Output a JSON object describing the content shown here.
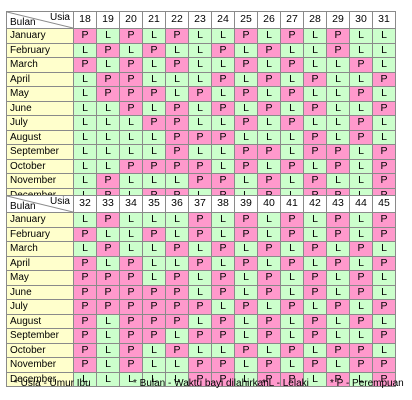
{
  "corner": {
    "age_label": "Usia",
    "month_label": "Bulan"
  },
  "months": [
    "January",
    "February",
    "March",
    "April",
    "May",
    "June",
    "July",
    "August",
    "September",
    "October",
    "November",
    "December"
  ],
  "chart_data": [
    {
      "type": "table",
      "ages": [
        18,
        19,
        20,
        21,
        22,
        23,
        24,
        25,
        26,
        27,
        28,
        29,
        30,
        31
      ],
      "rows": [
        [
          "P",
          "L",
          "P",
          "L",
          "P",
          "L",
          "L",
          "P",
          "L",
          "P",
          "L",
          "P",
          "L",
          "L"
        ],
        [
          "L",
          "P",
          "L",
          "P",
          "L",
          "L",
          "P",
          "L",
          "P",
          "L",
          "L",
          "P",
          "L",
          "L"
        ],
        [
          "P",
          "L",
          "P",
          "L",
          "P",
          "L",
          "L",
          "P",
          "L",
          "P",
          "L",
          "L",
          "P",
          "L"
        ],
        [
          "L",
          "P",
          "P",
          "L",
          "L",
          "L",
          "P",
          "L",
          "P",
          "L",
          "P",
          "L",
          "L",
          "P"
        ],
        [
          "L",
          "P",
          "P",
          "P",
          "L",
          "P",
          "L",
          "P",
          "L",
          "P",
          "L",
          "L",
          "P",
          "L"
        ],
        [
          "L",
          "L",
          "P",
          "L",
          "P",
          "L",
          "P",
          "L",
          "P",
          "L",
          "P",
          "L",
          "L",
          "P"
        ],
        [
          "L",
          "L",
          "L",
          "P",
          "P",
          "L",
          "L",
          "P",
          "L",
          "P",
          "L",
          "L",
          "P",
          "L"
        ],
        [
          "L",
          "L",
          "L",
          "L",
          "P",
          "P",
          "P",
          "L",
          "L",
          "L",
          "P",
          "L",
          "P",
          "L"
        ],
        [
          "L",
          "L",
          "L",
          "L",
          "P",
          "L",
          "L",
          "P",
          "P",
          "L",
          "P",
          "P",
          "L",
          "P"
        ],
        [
          "L",
          "L",
          "P",
          "P",
          "P",
          "P",
          "L",
          "P",
          "L",
          "P",
          "L",
          "P",
          "L",
          "P"
        ],
        [
          "L",
          "P",
          "L",
          "L",
          "L",
          "P",
          "P",
          "L",
          "P",
          "L",
          "P",
          "L",
          "L",
          "P"
        ],
        [
          "L",
          "P",
          "L",
          "P",
          "P",
          "L",
          "P",
          "L",
          "P",
          "L",
          "P",
          "P",
          "L",
          "P"
        ]
      ]
    },
    {
      "type": "table",
      "ages": [
        32,
        33,
        34,
        35,
        36,
        37,
        38,
        39,
        40,
        41,
        42,
        43,
        44,
        45
      ],
      "rows": [
        [
          "L",
          "P",
          "L",
          "L",
          "L",
          "P",
          "L",
          "P",
          "L",
          "P",
          "L",
          "P",
          "L",
          "P"
        ],
        [
          "P",
          "L",
          "L",
          "P",
          "L",
          "P",
          "L",
          "P",
          "L",
          "P",
          "L",
          "P",
          "L",
          "P"
        ],
        [
          "L",
          "P",
          "L",
          "L",
          "P",
          "L",
          "P",
          "L",
          "P",
          "L",
          "P",
          "L",
          "P",
          "L"
        ],
        [
          "P",
          "L",
          "P",
          "L",
          "L",
          "P",
          "L",
          "P",
          "L",
          "P",
          "L",
          "P",
          "L",
          "P"
        ],
        [
          "P",
          "P",
          "P",
          "L",
          "P",
          "L",
          "P",
          "L",
          "P",
          "L",
          "P",
          "L",
          "P",
          "L"
        ],
        [
          "P",
          "P",
          "P",
          "P",
          "P",
          "L",
          "P",
          "L",
          "P",
          "L",
          "P",
          "L",
          "P",
          "L"
        ],
        [
          "P",
          "P",
          "P",
          "P",
          "P",
          "P",
          "L",
          "P",
          "L",
          "P",
          "L",
          "P",
          "L",
          "P"
        ],
        [
          "P",
          "L",
          "P",
          "P",
          "P",
          "L",
          "P",
          "L",
          "P",
          "L",
          "P",
          "L",
          "P",
          "L"
        ],
        [
          "P",
          "L",
          "P",
          "P",
          "L",
          "P",
          "P",
          "L",
          "P",
          "L",
          "P",
          "L",
          "L",
          "P"
        ],
        [
          "P",
          "L",
          "P",
          "L",
          "P",
          "L",
          "L",
          "P",
          "L",
          "P",
          "L",
          "P",
          "P",
          "L"
        ],
        [
          "P",
          "L",
          "P",
          "L",
          "L",
          "P",
          "P",
          "L",
          "P",
          "L",
          "P",
          "L",
          "P",
          "P"
        ],
        [
          "L",
          "L",
          "L",
          "L",
          "L",
          "P",
          "P",
          "L",
          "P",
          "P",
          "L",
          "P",
          "L",
          "P"
        ]
      ]
    }
  ],
  "colors": {
    "L": "#ccffcc",
    "P": "#ff99cc",
    "month_bg": "#ffffcc"
  },
  "legend": [
    "* Usia - Umur Ibu",
    "* Bulan - Waktu bayi dilahirkan",
    "* L - Lelaki",
    "* P - Perempuan"
  ]
}
